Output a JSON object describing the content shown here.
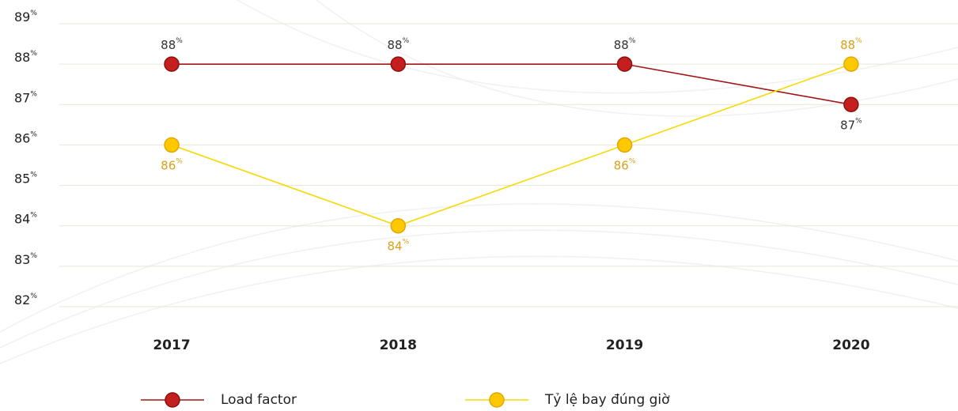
{
  "chart_data": {
    "type": "line",
    "categories": [
      "2017",
      "2018",
      "2019",
      "2020"
    ],
    "series": [
      {
        "name": "Load factor",
        "color": "#c41e1e",
        "line_color": "#a31515",
        "label_color": "#333333",
        "values": [
          88,
          88,
          88,
          87
        ],
        "value_labels": [
          "88%",
          "88%",
          "88%",
          "87%"
        ]
      },
      {
        "name": "Tỷ lệ bay đúng giờ",
        "color": "#ffc800",
        "line_color": "#f7d900",
        "label_color": "#d9a21a",
        "values": [
          86,
          84,
          86,
          88
        ],
        "value_labels": [
          "86%",
          "84%",
          "86%",
          "88%"
        ]
      }
    ],
    "ylim": [
      82,
      89
    ],
    "yticks": [
      {
        "value": 82,
        "label": "82%"
      },
      {
        "value": 83,
        "label": "83%"
      },
      {
        "value": 84,
        "label": "84%"
      },
      {
        "value": 85,
        "label": "85%"
      },
      {
        "value": 86,
        "label": "86%"
      },
      {
        "value": 87,
        "label": "87%"
      },
      {
        "value": 88,
        "label": "88%"
      },
      {
        "value": 89,
        "label": "89%"
      }
    ],
    "grid": true,
    "legend": "bottom"
  }
}
